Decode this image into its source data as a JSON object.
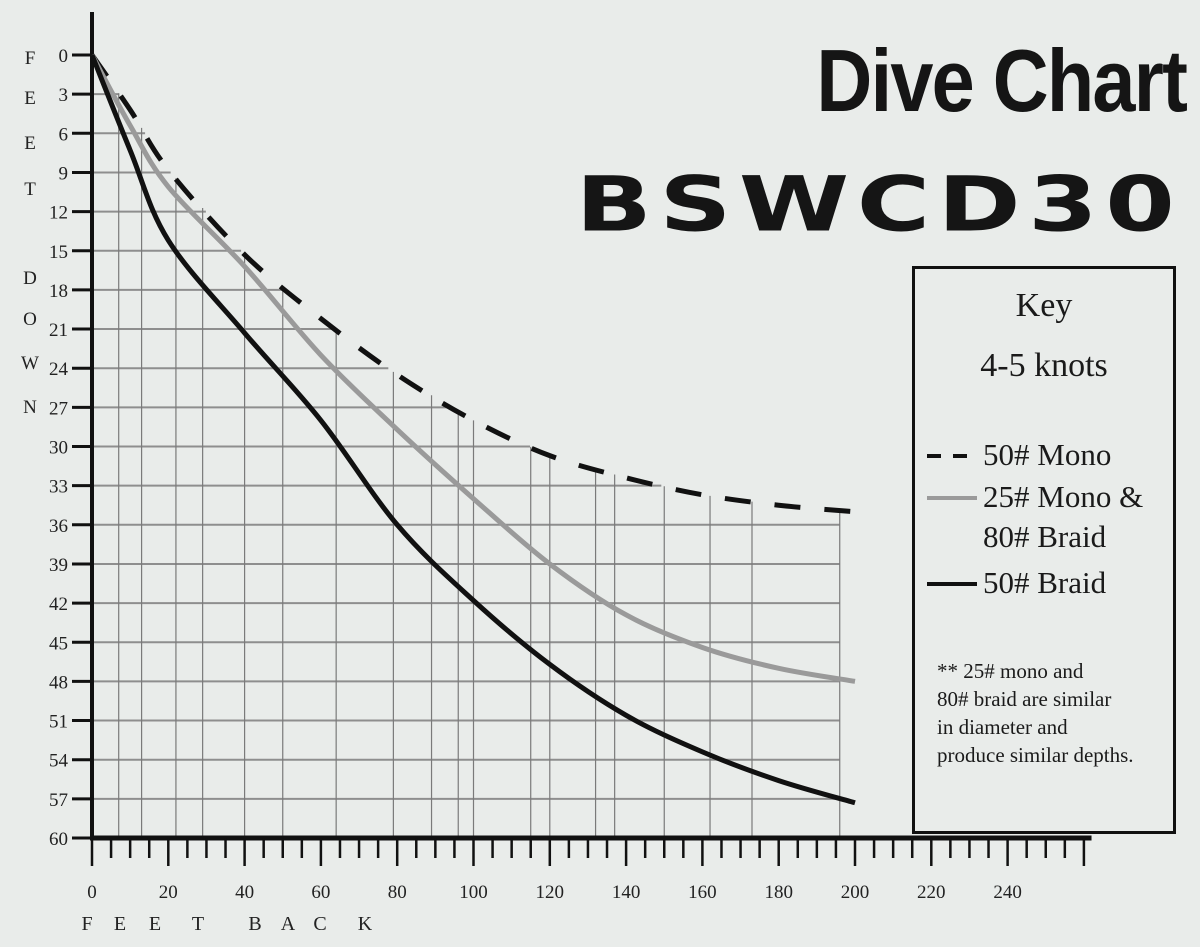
{
  "header": {
    "title": "Dive Chart",
    "model": "BSWCD30"
  },
  "key": {
    "title": "Key",
    "speed": "4-5 knots",
    "note": "** 25# mono and\n80# braid are similar\nin diameter and\nproduce similar depths."
  },
  "chart_data": {
    "type": "line",
    "title": "Dive Chart BSWCD30",
    "xlabel": "FEET BACK",
    "ylabel": "FEET DOWN",
    "xlim": [
      0,
      260
    ],
    "ylim": [
      0,
      60
    ],
    "y_inverted": true,
    "xticks": [
      0,
      20,
      40,
      60,
      80,
      100,
      120,
      140,
      160,
      180,
      200,
      220,
      240
    ],
    "yticks": [
      0,
      3,
      6,
      9,
      12,
      15,
      18,
      21,
      24,
      27,
      30,
      33,
      36,
      39,
      42,
      45,
      48,
      51,
      54,
      57,
      60
    ],
    "grid": true,
    "gridlines_x": [
      7,
      13,
      22,
      29,
      40,
      50,
      64,
      79,
      89,
      96,
      100,
      115,
      120,
      132,
      137,
      150,
      162,
      173,
      196
    ],
    "legend_placement": "right",
    "x": [
      0,
      10,
      20,
      40,
      60,
      80,
      100,
      120,
      140,
      160,
      180,
      200
    ],
    "series": [
      {
        "name": "50# Mono",
        "style": "dashed",
        "color": "#111111",
        "values": [
          0,
          4.2,
          8.8,
          15.3,
          20.2,
          24.5,
          28,
          30.7,
          32.4,
          33.7,
          34.5,
          35
        ]
      },
      {
        "name": "25# Mono & 80# Braid",
        "label_lines": [
          "25# Mono &",
          "80# Braid"
        ],
        "style": "solid",
        "color": "#9a9a9a",
        "values": [
          0,
          5.4,
          10.1,
          16.2,
          23,
          28.7,
          34,
          39,
          42.9,
          45.4,
          47,
          48
        ]
      },
      {
        "name": "50# Braid",
        "style": "solid",
        "color": "#111111",
        "values": [
          0,
          7.3,
          14.2,
          21.3,
          28,
          36,
          41.8,
          46.7,
          50.6,
          53.4,
          55.6,
          57.3
        ]
      }
    ]
  }
}
